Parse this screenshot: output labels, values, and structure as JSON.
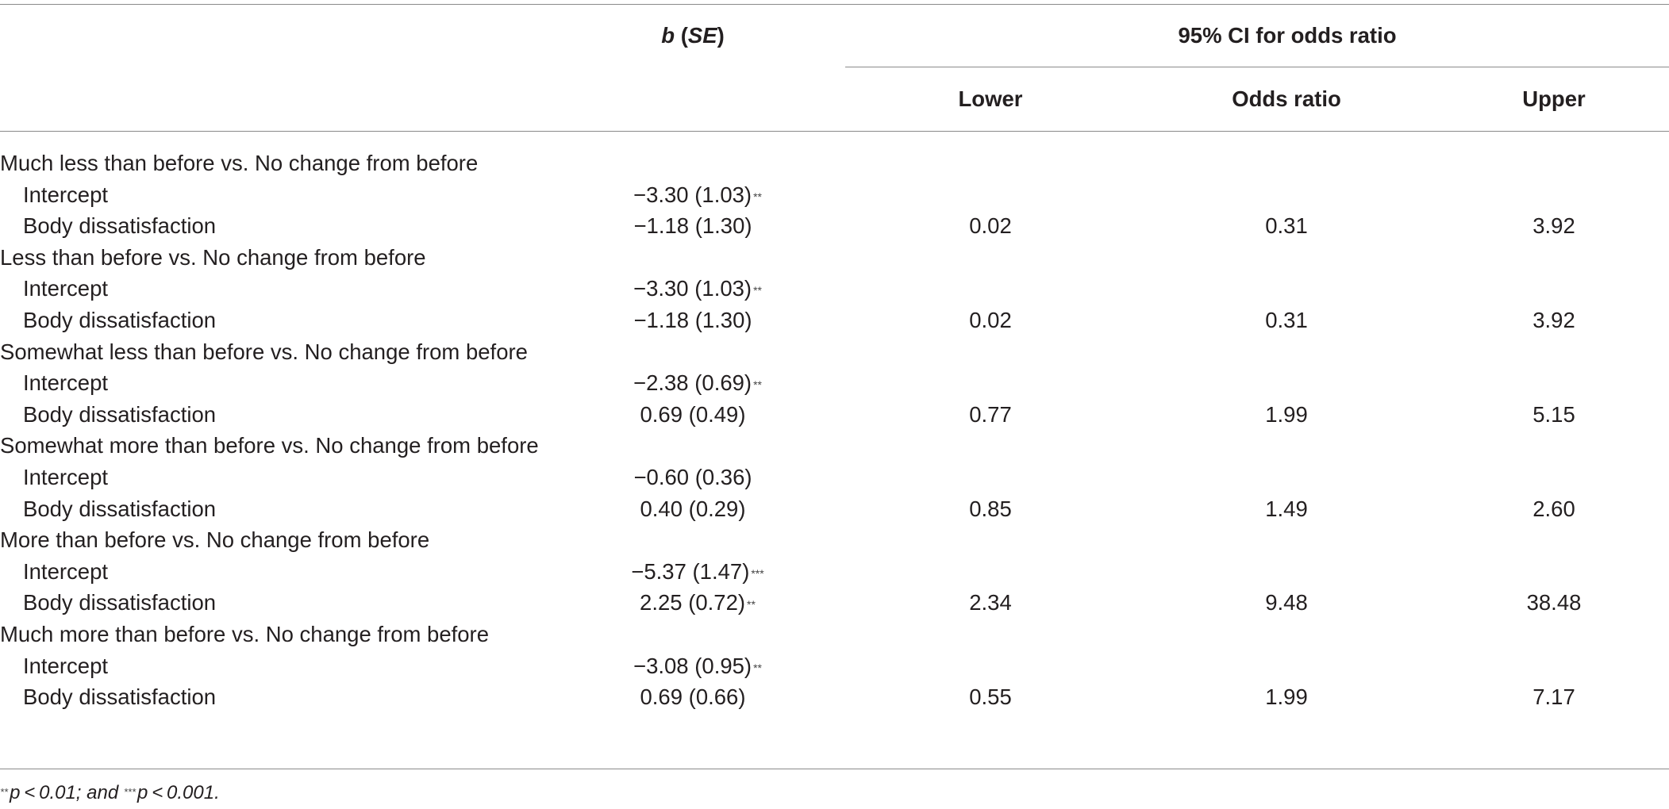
{
  "header": {
    "b_se": {
      "b": "b",
      "open": " (",
      "se": "SE",
      "close": ")"
    },
    "ci_group": "95% CI for odds ratio",
    "lower": "Lower",
    "odds_ratio": "Odds ratio",
    "upper": "Upper"
  },
  "groups": [
    {
      "label": "Much less than before vs. No change from before",
      "rows": [
        {
          "label": "Intercept",
          "b": "−3.30 (1.03)",
          "sig": "**",
          "lower": "",
          "or": "",
          "upper": ""
        },
        {
          "label": "Body dissatisfaction",
          "b": "−1.18 (1.30)",
          "sig": "",
          "lower": "0.02",
          "or": "0.31",
          "upper": "3.92"
        }
      ]
    },
    {
      "label": "Less than before vs. No change from before",
      "rows": [
        {
          "label": "Intercept",
          "b": "−3.30 (1.03)",
          "sig": "**",
          "lower": "",
          "or": "",
          "upper": ""
        },
        {
          "label": "Body dissatisfaction",
          "b": "−1.18 (1.30)",
          "sig": "",
          "lower": "0.02",
          "or": "0.31",
          "upper": "3.92"
        }
      ]
    },
    {
      "label": "Somewhat less than before vs. No change from before",
      "rows": [
        {
          "label": "Intercept",
          "b": "−2.38 (0.69)",
          "sig": "**",
          "lower": "",
          "or": "",
          "upper": ""
        },
        {
          "label": "Body dissatisfaction",
          "b": "0.69 (0.49)",
          "sig": "",
          "lower": "0.77",
          "or": "1.99",
          "upper": "5.15"
        }
      ]
    },
    {
      "label": "Somewhat more than before vs. No change from before",
      "rows": [
        {
          "label": "Intercept",
          "b": "−0.60 (0.36)",
          "sig": "",
          "lower": "",
          "or": "",
          "upper": ""
        },
        {
          "label": "Body dissatisfaction",
          "b": "0.40 (0.29)",
          "sig": "",
          "lower": "0.85",
          "or": "1.49",
          "upper": "2.60"
        }
      ]
    },
    {
      "label": "More than before vs. No change from before",
      "rows": [
        {
          "label": "Intercept",
          "b": "−5.37 (1.47)",
          "sig": "***",
          "lower": "",
          "or": "",
          "upper": ""
        },
        {
          "label": "Body dissatisfaction",
          "b": "2.25 (0.72)",
          "sig": "**",
          "lower": "2.34",
          "or": "9.48",
          "upper": "38.48"
        }
      ]
    },
    {
      "label": "Much more than before vs. No change from before",
      "rows": [
        {
          "label": "Intercept",
          "b": "−3.08 (0.95)",
          "sig": "**",
          "lower": "",
          "or": "",
          "upper": ""
        },
        {
          "label": "Body dissatisfaction",
          "b": "0.69 (0.66)",
          "sig": "",
          "lower": "0.55",
          "or": "1.99",
          "upper": "7.17"
        }
      ]
    }
  ],
  "footnote": {
    "sig1": "**",
    "text1": "p < 0.01; and ",
    "sig2": "***",
    "text2": "p < 0.001."
  }
}
